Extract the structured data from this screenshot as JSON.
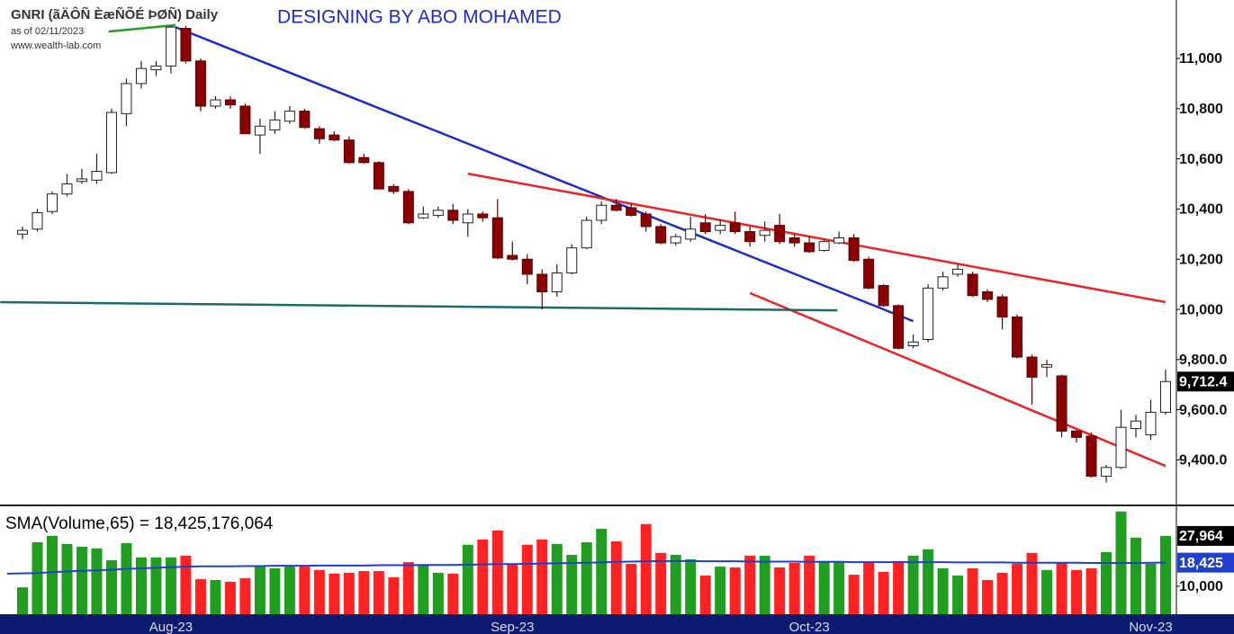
{
  "chart_data": {
    "type": "candlestick",
    "title": "GNRI (ãÄÔÑ ÈæÑÕÉ ÞØÑ) Daily",
    "subtitle": "as of 02/11/2023",
    "source": "www.wealth-lab.com",
    "annotation": "DESIGNING BY ABO MOHAMED",
    "categories": [
      null,
      null,
      null,
      null,
      null,
      null,
      null,
      null,
      null,
      null,
      "Aug-23",
      null,
      null,
      null,
      null,
      null,
      null,
      null,
      null,
      null,
      null,
      null,
      null,
      null,
      null,
      null,
      null,
      null,
      null,
      null,
      null,
      null,
      null,
      "Sep-23",
      null,
      null,
      null,
      null,
      null,
      null,
      null,
      null,
      null,
      null,
      null,
      null,
      null,
      null,
      null,
      null,
      null,
      null,
      null,
      "Oct-23",
      null,
      null,
      null,
      null,
      null,
      null,
      null,
      null,
      null,
      null,
      null,
      null,
      null,
      null,
      null,
      null,
      null,
      null,
      null,
      null,
      null,
      null,
      "Nov-23",
      null
    ],
    "open": [
      10300,
      10320,
      10390,
      10460,
      10510,
      10515,
      10545,
      10780,
      10900,
      10955,
      10970,
      11120,
      10990,
      10810,
      10835,
      10810,
      10695,
      10715,
      10750,
      10790,
      10720,
      10695,
      10675,
      10605,
      10585,
      10490,
      10470,
      10365,
      10375,
      10395,
      10345,
      10380,
      10365,
      10215,
      10200,
      10140,
      10070,
      10145,
      10245,
      10355,
      10415,
      10405,
      10380,
      10330,
      10265,
      10280,
      10345,
      10315,
      10345,
      10310,
      10295,
      10335,
      10285,
      10265,
      10235,
      10265,
      10285,
      10200,
      10095,
      10015,
      9855,
      9880,
      10085,
      10140,
      10140,
      10070,
      10050,
      9970,
      9810,
      9770,
      9735,
      9515,
      9495,
      9335,
      9370,
      9525,
      9500,
      9590
    ],
    "high": [
      10330,
      10400,
      10470,
      10540,
      10560,
      10620,
      10800,
      10920,
      10990,
      10990,
      11130,
      11130,
      11000,
      10850,
      10850,
      10820,
      10760,
      10790,
      10810,
      10800,
      10730,
      10710,
      10690,
      10620,
      10590,
      10500,
      10480,
      10410,
      10410,
      10420,
      10400,
      10390,
      10440,
      10270,
      10220,
      10160,
      10180,
      10260,
      10370,
      10430,
      10440,
      10420,
      10390,
      10340,
      10300,
      10370,
      10380,
      10360,
      10390,
      10330,
      10350,
      10380,
      10300,
      10290,
      10280,
      10310,
      10300,
      10210,
      10100,
      10020,
      9900,
      10100,
      10150,
      10180,
      10150,
      10080,
      10060,
      9980,
      9820,
      9800,
      9740,
      9520,
      9510,
      9380,
      9600,
      9580,
      9640,
      9760
    ],
    "low": [
      10280,
      10310,
      10380,
      10450,
      10500,
      10500,
      10540,
      10730,
      10880,
      10930,
      10940,
      10980,
      10790,
      10800,
      10800,
      10700,
      10620,
      10700,
      10740,
      10720,
      10660,
      10670,
      10580,
      10580,
      10480,
      10460,
      10340,
      10360,
      10365,
      10340,
      10290,
      10350,
      10200,
      10195,
      10100,
      10000,
      10050,
      10140,
      10240,
      10340,
      10390,
      10370,
      10310,
      10260,
      10255,
      10270,
      10300,
      10300,
      10300,
      10250,
      10270,
      10260,
      10250,
      10225,
      10230,
      10260,
      10190,
      10080,
      10010,
      9840,
      9845,
      9870,
      10075,
      10130,
      10050,
      10030,
      9920,
      9805,
      9620,
      9730,
      9490,
      9470,
      9330,
      9310,
      9365,
      9490,
      9480,
      9580
    ],
    "close": [
      10315,
      10385,
      10460,
      10500,
      10520,
      10550,
      10785,
      10900,
      10960,
      10970,
      11125,
      10990,
      10810,
      10835,
      10815,
      10700,
      10730,
      10755,
      10790,
      10725,
      10680,
      10675,
      10585,
      10585,
      10480,
      10470,
      10345,
      10380,
      10395,
      10355,
      10380,
      10365,
      10205,
      10200,
      10140,
      10070,
      10145,
      10245,
      10355,
      10415,
      10395,
      10375,
      10330,
      10265,
      10290,
      10320,
      10310,
      10335,
      10310,
      10270,
      10315,
      10270,
      10265,
      10230,
      10270,
      10285,
      10195,
      10085,
      10015,
      9845,
      9870,
      10085,
      10130,
      10160,
      10055,
      10040,
      9970,
      9810,
      9730,
      9780,
      9515,
      9490,
      9335,
      9370,
      9530,
      9555,
      9590,
      9712.4
    ],
    "last_close_label": "9,712.4",
    "up_color": "#ffffff",
    "down_color": "#8b0000",
    "ylim": [
      9226,
      11233
    ],
    "yticks": [
      {
        "value": 9400,
        "label": "9,400.0"
      },
      {
        "value": 9600,
        "label": "9,600.0"
      },
      {
        "value": 9800,
        "label": "9,800.0"
      },
      {
        "value": 10000,
        "label": "10,000"
      },
      {
        "value": 10200,
        "label": "10,200"
      },
      {
        "value": 10400,
        "label": "10,400"
      },
      {
        "value": 10600,
        "label": "10,600"
      },
      {
        "value": 10800,
        "label": "10,800"
      },
      {
        "value": 11000,
        "label": "11,000"
      }
    ],
    "trendlines": [
      {
        "color": "#1c2bd0",
        "from": [
          10.3,
          11125
        ],
        "to": [
          60,
          9953
        ]
      },
      {
        "color": "#ee2222",
        "from": [
          30,
          10541
        ],
        "to": [
          77,
          10029
        ]
      },
      {
        "color": "#ee2222",
        "from": [
          49,
          10065
        ],
        "to": [
          77,
          9376
        ]
      },
      {
        "color": "#1a6a6a",
        "from": [
          -1.5,
          10029
        ],
        "to": [
          54.9,
          9996
        ]
      },
      {
        "color": "#22a022",
        "from": [
          5.8,
          11107
        ],
        "to": [
          10.3,
          11133
        ]
      }
    ],
    "volume": {
      "type": "bar",
      "label": "SMA(Volume,65) = 18,425,176,064",
      "values": [
        9600,
        25700,
        28000,
        25100,
        24100,
        23500,
        19300,
        25400,
        20300,
        20300,
        20300,
        20900,
        12500,
        12200,
        11600,
        12900,
        17400,
        16400,
        17000,
        17000,
        15800,
        14500,
        14800,
        15400,
        15400,
        13200,
        18600,
        17700,
        14800,
        14500,
        24800,
        26700,
        29900,
        17700,
        24800,
        26700,
        25100,
        21200,
        25700,
        30500,
        26000,
        18000,
        32200,
        21900,
        21200,
        19600,
        13800,
        17000,
        16700,
        20900,
        20900,
        16700,
        18300,
        20900,
        19000,
        19000,
        14100,
        18600,
        15100,
        19000,
        20900,
        23200,
        16400,
        13800,
        16400,
        12200,
        14800,
        18000,
        21900,
        15800,
        18300,
        15800,
        16400,
        22200,
        36700,
        27300,
        18000,
        27964
      ],
      "last_label": "27,964",
      "up_color": "#1f9e1f",
      "down_color": "#ff2222",
      "sma": {
        "color": "#1f3fd0",
        "last_label": "18,425",
        "values": [
          14500,
          14700,
          15000,
          15300,
          15500,
          15700,
          15900,
          16200,
          16400,
          16600,
          16800,
          17000,
          17100,
          17100,
          17100,
          17200,
          17200,
          17300,
          17300,
          17300,
          17400,
          17400,
          17400,
          17400,
          17500,
          17500,
          17500,
          17600,
          17600,
          17600,
          17700,
          17800,
          17900,
          17900,
          18000,
          18100,
          18200,
          18300,
          18400,
          18500,
          18700,
          18800,
          18900,
          19000,
          19000,
          19000,
          18900,
          18900,
          18900,
          18800,
          18800,
          18800,
          18800,
          18700,
          18700,
          18700,
          18600,
          18600,
          18600,
          18600,
          18600,
          18600,
          18600,
          18500,
          18500,
          18500,
          18500,
          18400,
          18400,
          18400,
          18400,
          18400,
          18300,
          18300,
          18300,
          18300,
          18400,
          18425
        ]
      },
      "ylim": [
        0,
        37900
      ],
      "yticks": [
        {
          "value": 10000,
          "label": "10,000"
        }
      ]
    }
  }
}
